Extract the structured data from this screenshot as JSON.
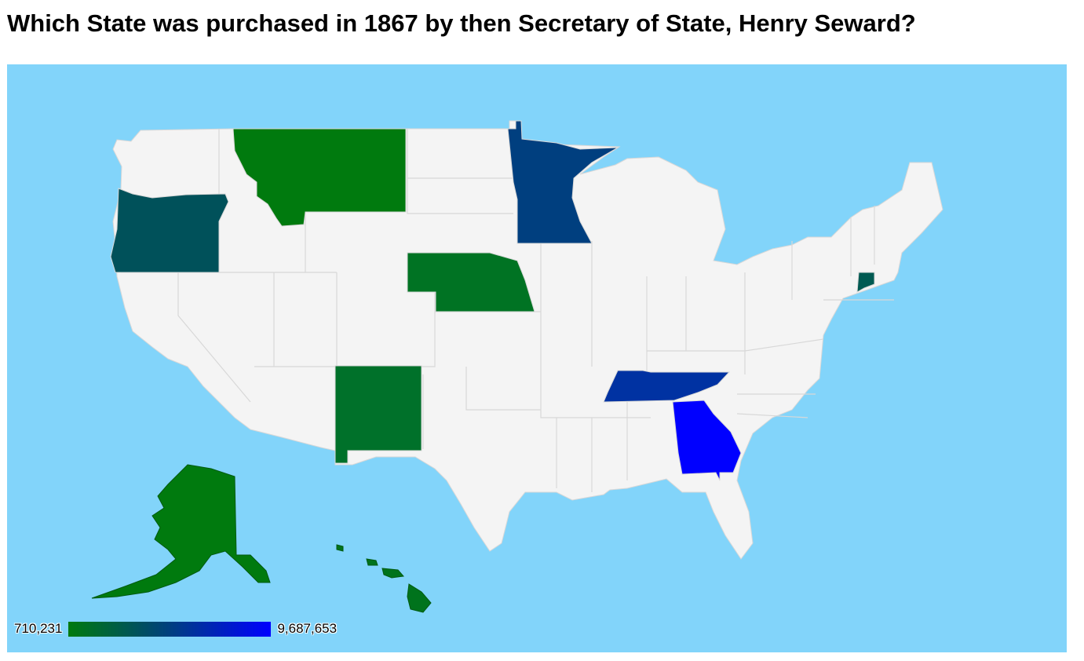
{
  "question": "Which State was purchased in 1867 by then Secretary of State, Henry Seward?",
  "map": {
    "background_color": "#82d4fa",
    "state_default_color": "#f4f4f4",
    "border_color": "#d8d8d8",
    "highlighted_states": [
      {
        "name": "Montana",
        "color": "#007a0e"
      },
      {
        "name": "Oregon",
        "color": "#00515a"
      },
      {
        "name": "Minnesota",
        "color": "#003f7f"
      },
      {
        "name": "Nebraska",
        "color": "#007323"
      },
      {
        "name": "New Mexico",
        "color": "#00712a"
      },
      {
        "name": "Tennessee",
        "color": "#0032a2"
      },
      {
        "name": "Georgia",
        "color": "#0000ff"
      },
      {
        "name": "Connecticut",
        "color": "#005a52"
      },
      {
        "name": "Alaska",
        "color": "#007a0e"
      },
      {
        "name": "Hawaii",
        "color": "#00731c"
      }
    ]
  },
  "legend": {
    "min_label": "710,231",
    "max_label": "9,687,653",
    "color_low": "#007a0e",
    "color_mid": "#003f7f",
    "color_high": "#0000ff"
  }
}
